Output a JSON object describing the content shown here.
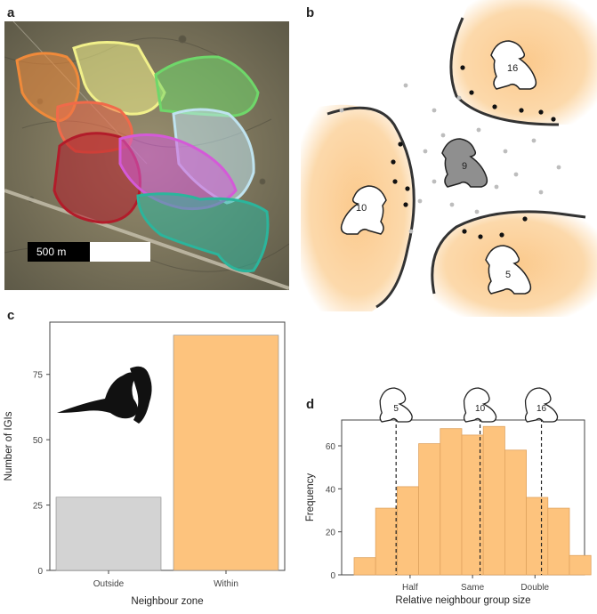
{
  "panel_letters": {
    "a": "a",
    "b": "b",
    "c": "c",
    "d": "d"
  },
  "panel_a": {
    "scale_bar_label": "500 m",
    "territory_colors": [
      "#f08a3a",
      "#f1f08a",
      "#6fd76a",
      "#f06a4a",
      "#bfe3ef",
      "#b21c2a",
      "#d45ad8",
      "#2bb59c"
    ]
  },
  "panel_b": {
    "group_sizes": [
      "16",
      "9",
      "10",
      "5"
    ],
    "territory_fill": "#fbc98c",
    "focal_group_color": "#8f8f8f"
  },
  "chart_data": [
    {
      "type": "bar",
      "panel": "c",
      "categories": [
        "Outside",
        "Within"
      ],
      "values": [
        28,
        90
      ],
      "colors": [
        "#d3d3d3",
        "#fdc37d"
      ],
      "xlabel": "Neighbour zone",
      "ylabel": "Number of IGIs",
      "yticks": [
        0,
        25,
        50,
        75
      ],
      "ylim": [
        0,
        95
      ],
      "grid": false
    },
    {
      "type": "bar",
      "panel": "d",
      "title": "",
      "bin_values": [
        8,
        31,
        41,
        61,
        68,
        65,
        69,
        58,
        36,
        31,
        9
      ],
      "xlabel": "Relative neighbour group size",
      "ylabel": "Frequency",
      "xtick_labels": [
        "Half",
        "Same",
        "Double"
      ],
      "yticks": [
        0,
        20,
        40,
        60
      ],
      "ylim": [
        0,
        72
      ],
      "reference_lines": [
        "5",
        "10",
        "16"
      ],
      "color": "#fdc37d",
      "grid": false
    }
  ]
}
